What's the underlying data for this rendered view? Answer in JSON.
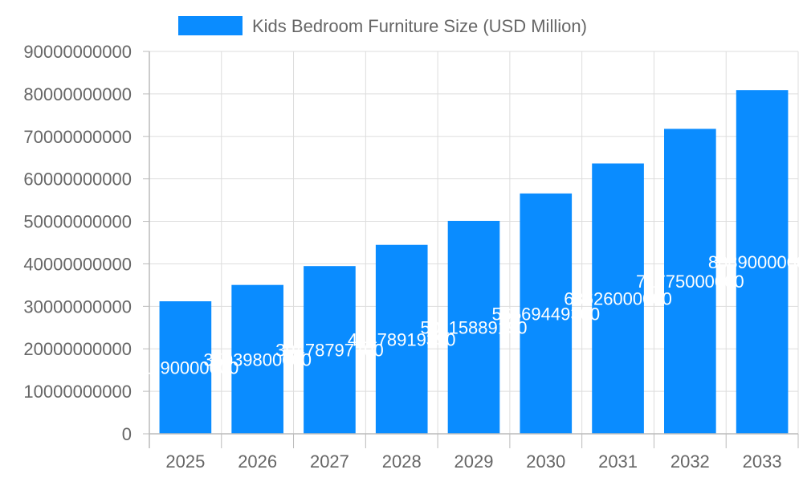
{
  "chart_data": {
    "type": "bar",
    "categories": [
      "2025",
      "2026",
      "2027",
      "2028",
      "2029",
      "2030",
      "2031",
      "2032",
      "2033"
    ],
    "series": [
      {
        "name": "Kids Bedroom Furniture Size (USD Million)",
        "values": [
          31190000000,
          35039800000,
          39478797700,
          44478919390,
          50115889190,
          56569449300,
          63626000000,
          71775000000,
          80890000000
        ],
        "labels": [
          "31190000000",
          "35039800000",
          "39478797700",
          "44478919390",
          "50115889190",
          "56569449300",
          "63626000000",
          "71775000000",
          "80890000000"
        ],
        "color": "#0a8cff"
      }
    ],
    "y_ticks": [
      "0",
      "10000000000",
      "20000000000",
      "30000000000",
      "40000000000",
      "50000000000",
      "60000000000",
      "70000000000",
      "80000000000",
      "90000000000"
    ],
    "ylim": [
      0,
      90000000000
    ],
    "grid": true,
    "legend_position": "top"
  }
}
